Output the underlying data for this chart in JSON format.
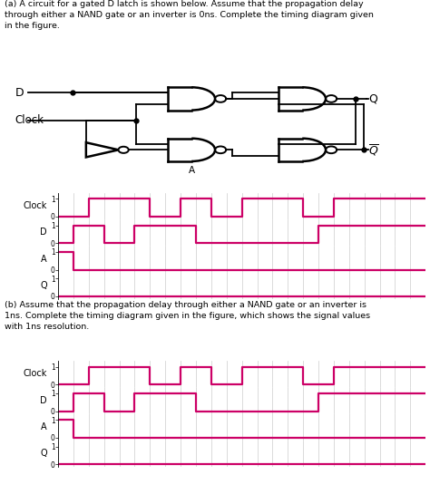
{
  "text_color": "#000000",
  "signal_color": "#cc0066",
  "grid_color": "#cccccc",
  "bg_color": "#ffffff",
  "title_a": "(a) A circuit for a gated D latch is shown below. Assume that the propagation delay\nthrough either a NAND gate or an inverter is 0ns. Complete the timing diagram given\nin the figure.",
  "title_b": "(b) Assume that the propagation delay through either a NAND gate or an inverter is\n1ns. Complete the timing diagram given in the figure, which shows the signal values\nwith 1ns resolution.",
  "signal_labels": [
    "Clock",
    "D",
    "A",
    "Q"
  ],
  "num_steps": 24,
  "clock_signal": [
    0,
    0,
    1,
    1,
    1,
    1,
    0,
    0,
    1,
    1,
    0,
    0,
    1,
    1,
    1,
    1,
    0,
    0,
    1,
    1,
    1,
    1,
    1,
    1
  ],
  "d_signal": [
    0,
    1,
    1,
    0,
    0,
    1,
    1,
    1,
    1,
    0,
    0,
    0,
    0,
    0,
    0,
    0,
    0,
    1,
    1,
    1,
    1,
    1,
    1,
    1
  ],
  "a_signal_top": [
    1,
    0,
    0,
    0,
    0,
    0,
    0,
    0,
    0,
    0,
    0,
    0,
    0,
    0,
    0,
    0,
    0,
    0,
    0,
    0,
    0,
    0,
    0,
    0
  ],
  "q_signal_top": [
    0,
    0,
    0,
    0,
    0,
    0,
    0,
    0,
    0,
    0,
    0,
    0,
    0,
    0,
    0,
    0,
    0,
    0,
    0,
    0,
    0,
    0,
    0,
    0
  ],
  "clock_signal_b": [
    0,
    0,
    1,
    1,
    1,
    1,
    0,
    0,
    1,
    1,
    0,
    0,
    1,
    1,
    1,
    1,
    0,
    0,
    1,
    1,
    1,
    1,
    1,
    1
  ],
  "d_signal_b": [
    0,
    1,
    1,
    0,
    0,
    1,
    1,
    1,
    1,
    0,
    0,
    0,
    0,
    0,
    0,
    0,
    0,
    1,
    1,
    1,
    1,
    1,
    1,
    1
  ],
  "a_signal_b": [
    1,
    0,
    0,
    0,
    0,
    0,
    0,
    0,
    0,
    0,
    0,
    0,
    0,
    0,
    0,
    0,
    0,
    0,
    0,
    0,
    0,
    0,
    0,
    0
  ],
  "q_signal_b": [
    0,
    0,
    0,
    0,
    0,
    0,
    0,
    0,
    0,
    0,
    0,
    0,
    0,
    0,
    0,
    0,
    0,
    0,
    0,
    0,
    0,
    0,
    0,
    0
  ],
  "fig_width": 4.74,
  "fig_height": 5.45,
  "timing_label_fontsize": 7,
  "timing_tick_fontsize": 5.5
}
